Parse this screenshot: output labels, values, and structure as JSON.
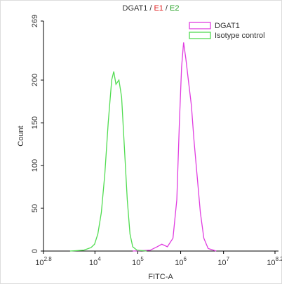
{
  "chart_data": {
    "type": "line",
    "title_parts": [
      {
        "text": "DGAT1",
        "color": "#333333"
      },
      {
        "text": "/",
        "color": "#333333"
      },
      {
        "text": "E1",
        "color": "#e02020"
      },
      {
        "text": "/",
        "color": "#333333"
      },
      {
        "text": "E2",
        "color": "#20a020"
      }
    ],
    "x_label": "FITC-A",
    "y_label": "Count",
    "xscale": "log",
    "xlim": [
      630.957,
      158489319
    ],
    "xticks": [
      {
        "value": 630.957,
        "label": "10^2.8"
      },
      {
        "value": 10000,
        "label": "10^4"
      },
      {
        "value": 100000,
        "label": "10^5"
      },
      {
        "value": 1000000,
        "label": "10^6"
      },
      {
        "value": 10000000,
        "label": "10^7"
      },
      {
        "value": 158489319,
        "label": "10^8.2"
      }
    ],
    "ylim": [
      0,
      269
    ],
    "yticks": [
      0,
      50,
      100,
      150,
      200,
      269
    ],
    "legend": "upper right",
    "series": [
      {
        "name": "DGAT1",
        "color": "#e03ce0",
        "x": [
          76100,
          195000,
          282000,
          363000,
          490000,
          661000,
          813000,
          933000,
          1050000,
          1170000,
          1320000,
          1510000,
          1780000,
          2040000,
          2400000,
          2880000,
          3470000,
          4370000,
          6760000
        ],
        "values": [
          0,
          1,
          5,
          8,
          5,
          15,
          60,
          150,
          215,
          244,
          225,
          200,
          170,
          130,
          90,
          45,
          15,
          3,
          0
        ]
      },
      {
        "name": "Isotype control",
        "color": "#50dc50",
        "x": [
          2630,
          5500,
          8100,
          9800,
          11700,
          14100,
          17000,
          20400,
          24600,
          27500,
          30900,
          36300,
          41900,
          48800,
          56800,
          65700,
          76100,
          95500,
          161000
        ],
        "values": [
          0,
          1,
          4,
          8,
          20,
          45,
          90,
          150,
          200,
          210,
          195,
          200,
          180,
          120,
          60,
          20,
          5,
          1,
          0
        ]
      }
    ]
  }
}
